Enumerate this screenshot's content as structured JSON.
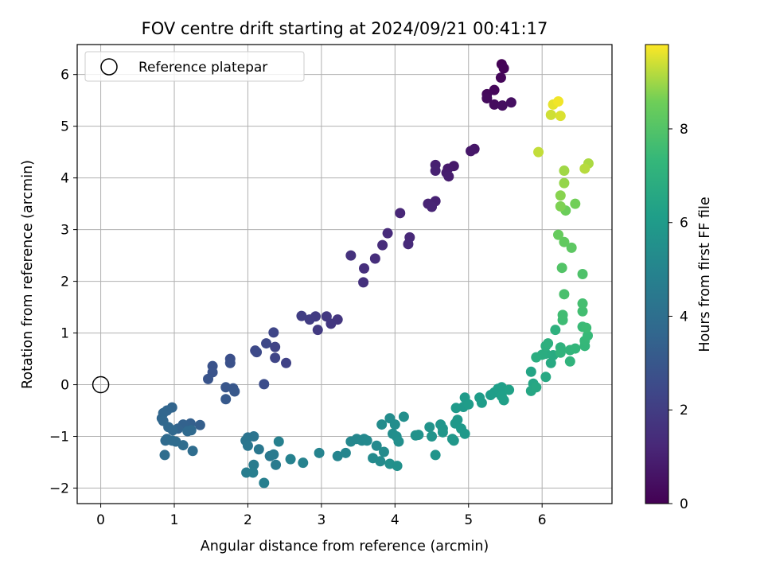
{
  "chart_data": {
    "type": "scatter",
    "title": "FOV centre drift starting at 2024/09/21 00:41:17",
    "xlabel": "Angular distance from reference (arcmin)",
    "ylabel": "Rotation from reference (arcmin)",
    "xlim": [
      -0.32,
      6.95
    ],
    "ylim": [
      -2.3,
      6.58
    ],
    "xticks": [
      0,
      1,
      2,
      3,
      4,
      5,
      6
    ],
    "yticks": [
      -2,
      -1,
      0,
      1,
      2,
      3,
      4,
      5,
      6
    ],
    "grid": true,
    "legend": {
      "position": "top-left",
      "entries": [
        "Reference platepar"
      ]
    },
    "reference_point": {
      "x": 0,
      "y": 0,
      "marker": "open-circle",
      "color": "#000000"
    },
    "colorbar": {
      "label": "Hours from first FF file",
      "colormap": "viridis",
      "range": [
        0,
        9.8
      ],
      "ticks": [
        0,
        2,
        4,
        6,
        8
      ]
    },
    "points": [
      {
        "x": 5.45,
        "y": 6.2,
        "h": 0.05
      },
      {
        "x": 5.48,
        "y": 6.12,
        "h": 0.1
      },
      {
        "x": 5.44,
        "y": 5.94,
        "h": 0.15
      },
      {
        "x": 5.35,
        "y": 5.7,
        "h": 0.2
      },
      {
        "x": 5.25,
        "y": 5.62,
        "h": 0.25
      },
      {
        "x": 5.25,
        "y": 5.54,
        "h": 0.3
      },
      {
        "x": 5.35,
        "y": 5.42,
        "h": 0.35
      },
      {
        "x": 5.46,
        "y": 5.4,
        "h": 0.4
      },
      {
        "x": 5.58,
        "y": 5.46,
        "h": 0.45
      },
      {
        "x": 5.08,
        "y": 4.56,
        "h": 0.65
      },
      {
        "x": 5.03,
        "y": 4.52,
        "h": 0.7
      },
      {
        "x": 4.8,
        "y": 4.23,
        "h": 0.75
      },
      {
        "x": 4.72,
        "y": 4.18,
        "h": 0.8
      },
      {
        "x": 4.7,
        "y": 4.1,
        "h": 0.85
      },
      {
        "x": 4.73,
        "y": 4.03,
        "h": 0.9
      },
      {
        "x": 4.55,
        "y": 4.25,
        "h": 0.95
      },
      {
        "x": 4.55,
        "y": 4.14,
        "h": 1.0
      },
      {
        "x": 4.55,
        "y": 3.55,
        "h": 1.05
      },
      {
        "x": 4.45,
        "y": 3.5,
        "h": 1.1
      },
      {
        "x": 4.5,
        "y": 3.44,
        "h": 1.12
      },
      {
        "x": 4.07,
        "y": 3.32,
        "h": 1.2
      },
      {
        "x": 4.2,
        "y": 2.85,
        "h": 1.25
      },
      {
        "x": 4.18,
        "y": 2.72,
        "h": 1.3
      },
      {
        "x": 3.9,
        "y": 2.93,
        "h": 1.35
      },
      {
        "x": 3.83,
        "y": 2.7,
        "h": 1.4
      },
      {
        "x": 3.73,
        "y": 2.44,
        "h": 1.45
      },
      {
        "x": 3.58,
        "y": 2.25,
        "h": 1.5
      },
      {
        "x": 3.57,
        "y": 1.98,
        "h": 1.55
      },
      {
        "x": 3.4,
        "y": 2.5,
        "h": 1.6
      },
      {
        "x": 3.22,
        "y": 1.26,
        "h": 1.75
      },
      {
        "x": 3.13,
        "y": 1.18,
        "h": 1.8
      },
      {
        "x": 3.07,
        "y": 1.32,
        "h": 1.85
      },
      {
        "x": 2.95,
        "y": 1.06,
        "h": 1.9
      },
      {
        "x": 2.92,
        "y": 1.32,
        "h": 1.95
      },
      {
        "x": 2.84,
        "y": 1.26,
        "h": 2.0
      },
      {
        "x": 2.73,
        "y": 1.33,
        "h": 2.05
      },
      {
        "x": 2.52,
        "y": 0.42,
        "h": 2.2
      },
      {
        "x": 2.37,
        "y": 0.73,
        "h": 2.25
      },
      {
        "x": 2.37,
        "y": 0.52,
        "h": 2.3
      },
      {
        "x": 2.35,
        "y": 1.01,
        "h": 2.35
      },
      {
        "x": 2.25,
        "y": 0.8,
        "h": 2.4
      },
      {
        "x": 2.1,
        "y": 0.66,
        "h": 2.45
      },
      {
        "x": 2.12,
        "y": 0.63,
        "h": 2.5
      },
      {
        "x": 2.22,
        "y": 0.01,
        "h": 2.6
      },
      {
        "x": 1.76,
        "y": 0.5,
        "h": 2.7
      },
      {
        "x": 1.76,
        "y": 0.42,
        "h": 2.75
      },
      {
        "x": 1.52,
        "y": 0.36,
        "h": 2.8
      },
      {
        "x": 1.52,
        "y": 0.24,
        "h": 2.85
      },
      {
        "x": 1.46,
        "y": 0.11,
        "h": 2.9
      },
      {
        "x": 1.7,
        "y": -0.05,
        "h": 2.95
      },
      {
        "x": 1.8,
        "y": -0.07,
        "h": 3.0
      },
      {
        "x": 1.82,
        "y": -0.13,
        "h": 3.05
      },
      {
        "x": 1.7,
        "y": -0.28,
        "h": 3.1
      },
      {
        "x": 1.35,
        "y": -0.78,
        "h": 3.3
      },
      {
        "x": 1.22,
        "y": -0.75,
        "h": 3.35
      },
      {
        "x": 1.18,
        "y": -0.82,
        "h": 3.4
      },
      {
        "x": 1.12,
        "y": -0.77,
        "h": 3.45
      },
      {
        "x": 1.05,
        "y": -0.85,
        "h": 3.5
      },
      {
        "x": 0.97,
        "y": -0.44,
        "h": 3.55
      },
      {
        "x": 0.9,
        "y": -0.5,
        "h": 3.6
      },
      {
        "x": 0.85,
        "y": -0.55,
        "h": 3.62
      },
      {
        "x": 0.83,
        "y": -0.65,
        "h": 3.65
      },
      {
        "x": 0.85,
        "y": -0.7,
        "h": 3.68
      },
      {
        "x": 0.92,
        "y": -0.82,
        "h": 3.7
      },
      {
        "x": 0.98,
        "y": -0.88,
        "h": 3.72
      },
      {
        "x": 1.23,
        "y": -0.88,
        "h": 3.75
      },
      {
        "x": 1.18,
        "y": -0.9,
        "h": 3.78
      },
      {
        "x": 0.9,
        "y": -1.05,
        "h": 3.8
      },
      {
        "x": 0.88,
        "y": -1.08,
        "h": 3.82
      },
      {
        "x": 0.97,
        "y": -1.08,
        "h": 3.85
      },
      {
        "x": 1.02,
        "y": -1.1,
        "h": 3.88
      },
      {
        "x": 1.12,
        "y": -1.17,
        "h": 3.9
      },
      {
        "x": 1.25,
        "y": -1.28,
        "h": 3.92
      },
      {
        "x": 0.87,
        "y": -1.36,
        "h": 3.95
      },
      {
        "x": 2.0,
        "y": -1.02,
        "h": 4.2
      },
      {
        "x": 2.08,
        "y": -1.0,
        "h": 4.25
      },
      {
        "x": 1.97,
        "y": -1.08,
        "h": 4.3
      },
      {
        "x": 2.0,
        "y": -1.18,
        "h": 4.35
      },
      {
        "x": 2.15,
        "y": -1.25,
        "h": 4.4
      },
      {
        "x": 2.3,
        "y": -1.38,
        "h": 4.45
      },
      {
        "x": 2.35,
        "y": -1.35,
        "h": 4.5
      },
      {
        "x": 2.38,
        "y": -1.55,
        "h": 4.55
      },
      {
        "x": 2.08,
        "y": -1.55,
        "h": 4.6
      },
      {
        "x": 1.98,
        "y": -1.7,
        "h": 4.65
      },
      {
        "x": 2.07,
        "y": -1.7,
        "h": 4.7
      },
      {
        "x": 2.22,
        "y": -1.9,
        "h": 4.75
      },
      {
        "x": 2.42,
        "y": -1.1,
        "h": 4.8
      },
      {
        "x": 2.58,
        "y": -1.44,
        "h": 4.85
      },
      {
        "x": 2.75,
        "y": -1.51,
        "h": 4.9
      },
      {
        "x": 2.97,
        "y": -1.32,
        "h": 4.95
      },
      {
        "x": 3.22,
        "y": -1.38,
        "h": 5.0
      },
      {
        "x": 3.33,
        "y": -1.32,
        "h": 5.05
      },
      {
        "x": 3.4,
        "y": -1.1,
        "h": 5.1
      },
      {
        "x": 3.48,
        "y": -1.05,
        "h": 5.12
      },
      {
        "x": 3.55,
        "y": -1.08,
        "h": 5.15
      },
      {
        "x": 3.58,
        "y": -1.05,
        "h": 5.17
      },
      {
        "x": 3.62,
        "y": -1.08,
        "h": 5.2
      },
      {
        "x": 3.75,
        "y": -1.18,
        "h": 5.22
      },
      {
        "x": 3.7,
        "y": -1.42,
        "h": 5.25
      },
      {
        "x": 3.8,
        "y": -1.48,
        "h": 5.28
      },
      {
        "x": 3.85,
        "y": -1.3,
        "h": 5.3
      },
      {
        "x": 3.82,
        "y": -0.77,
        "h": 5.32
      },
      {
        "x": 3.93,
        "y": -0.65,
        "h": 5.35
      },
      {
        "x": 4.0,
        "y": -0.77,
        "h": 5.37
      },
      {
        "x": 3.97,
        "y": -0.95,
        "h": 5.4
      },
      {
        "x": 4.02,
        "y": -1.0,
        "h": 5.42
      },
      {
        "x": 4.05,
        "y": -1.1,
        "h": 5.45
      },
      {
        "x": 4.12,
        "y": -0.62,
        "h": 5.47
      },
      {
        "x": 3.93,
        "y": -1.53,
        "h": 5.5
      },
      {
        "x": 4.03,
        "y": -1.57,
        "h": 5.52
      },
      {
        "x": 4.28,
        "y": -0.98,
        "h": 5.6
      },
      {
        "x": 4.32,
        "y": -0.97,
        "h": 5.62
      },
      {
        "x": 4.47,
        "y": -0.82,
        "h": 5.65
      },
      {
        "x": 4.5,
        "y": -1.0,
        "h": 5.67
      },
      {
        "x": 4.55,
        "y": -1.36,
        "h": 5.7
      },
      {
        "x": 4.62,
        "y": -0.77,
        "h": 5.72
      },
      {
        "x": 4.65,
        "y": -0.85,
        "h": 5.75
      },
      {
        "x": 4.65,
        "y": -0.92,
        "h": 5.77
      },
      {
        "x": 4.78,
        "y": -1.05,
        "h": 5.8
      },
      {
        "x": 4.8,
        "y": -1.08,
        "h": 5.82
      },
      {
        "x": 4.82,
        "y": -0.75,
        "h": 5.85
      },
      {
        "x": 4.85,
        "y": -0.68,
        "h": 5.87
      },
      {
        "x": 4.9,
        "y": -0.85,
        "h": 5.9
      },
      {
        "x": 4.95,
        "y": -0.95,
        "h": 5.92
      },
      {
        "x": 4.83,
        "y": -0.45,
        "h": 5.95
      },
      {
        "x": 4.93,
        "y": -0.43,
        "h": 5.97
      },
      {
        "x": 4.95,
        "y": -0.25,
        "h": 6.0
      },
      {
        "x": 5.0,
        "y": -0.38,
        "h": 6.02
      },
      {
        "x": 5.15,
        "y": -0.25,
        "h": 6.05
      },
      {
        "x": 5.18,
        "y": -0.35,
        "h": 6.07
      },
      {
        "x": 5.3,
        "y": -0.2,
        "h": 6.1
      },
      {
        "x": 5.35,
        "y": -0.15,
        "h": 6.12
      },
      {
        "x": 5.4,
        "y": -0.08,
        "h": 6.15
      },
      {
        "x": 5.45,
        "y": -0.05,
        "h": 6.17
      },
      {
        "x": 5.45,
        "y": -0.22,
        "h": 6.2
      },
      {
        "x": 5.48,
        "y": -0.3,
        "h": 6.22
      },
      {
        "x": 5.55,
        "y": -0.1,
        "h": 6.25
      },
      {
        "x": 5.85,
        "y": 0.25,
        "h": 6.4
      },
      {
        "x": 5.88,
        "y": 0.02,
        "h": 6.45
      },
      {
        "x": 5.85,
        "y": -0.12,
        "h": 6.5
      },
      {
        "x": 5.92,
        "y": -0.05,
        "h": 6.55
      },
      {
        "x": 6.05,
        "y": 0.15,
        "h": 6.6
      },
      {
        "x": 6.12,
        "y": 0.42,
        "h": 6.65
      },
      {
        "x": 6.15,
        "y": 0.57,
        "h": 6.7
      },
      {
        "x": 6.05,
        "y": 0.6,
        "h": 6.75
      },
      {
        "x": 6.0,
        "y": 0.58,
        "h": 6.8
      },
      {
        "x": 5.92,
        "y": 0.53,
        "h": 6.85
      },
      {
        "x": 6.05,
        "y": 0.75,
        "h": 6.9
      },
      {
        "x": 6.08,
        "y": 0.8,
        "h": 6.95
      },
      {
        "x": 6.18,
        "y": 1.06,
        "h": 7.0
      },
      {
        "x": 6.25,
        "y": 0.72,
        "h": 7.05
      },
      {
        "x": 6.25,
        "y": 0.62,
        "h": 7.1
      },
      {
        "x": 6.38,
        "y": 0.45,
        "h": 7.15
      },
      {
        "x": 6.38,
        "y": 0.67,
        "h": 7.2
      },
      {
        "x": 6.45,
        "y": 0.7,
        "h": 7.25
      },
      {
        "x": 6.58,
        "y": 0.75,
        "h": 7.3
      },
      {
        "x": 6.58,
        "y": 0.85,
        "h": 7.35
      },
      {
        "x": 6.62,
        "y": 0.95,
        "h": 7.4
      },
      {
        "x": 6.55,
        "y": 1.12,
        "h": 7.45
      },
      {
        "x": 6.6,
        "y": 1.1,
        "h": 7.5
      },
      {
        "x": 6.28,
        "y": 1.25,
        "h": 7.55
      },
      {
        "x": 6.28,
        "y": 1.35,
        "h": 7.6
      },
      {
        "x": 6.55,
        "y": 1.42,
        "h": 7.65
      },
      {
        "x": 6.55,
        "y": 1.57,
        "h": 7.7
      },
      {
        "x": 6.3,
        "y": 1.75,
        "h": 7.8
      },
      {
        "x": 6.55,
        "y": 2.14,
        "h": 7.9
      },
      {
        "x": 6.27,
        "y": 2.26,
        "h": 8.0
      },
      {
        "x": 6.4,
        "y": 2.65,
        "h": 8.2
      },
      {
        "x": 6.3,
        "y": 2.76,
        "h": 8.3
      },
      {
        "x": 6.22,
        "y": 2.9,
        "h": 8.4
      },
      {
        "x": 6.32,
        "y": 3.37,
        "h": 8.5
      },
      {
        "x": 6.45,
        "y": 3.5,
        "h": 8.6
      },
      {
        "x": 6.25,
        "y": 3.45,
        "h": 8.7
      },
      {
        "x": 6.25,
        "y": 3.66,
        "h": 8.8
      },
      {
        "x": 6.3,
        "y": 3.9,
        "h": 8.9
      },
      {
        "x": 6.3,
        "y": 4.14,
        "h": 9.0
      },
      {
        "x": 6.63,
        "y": 4.28,
        "h": 9.1
      },
      {
        "x": 6.58,
        "y": 4.18,
        "h": 9.2
      },
      {
        "x": 5.95,
        "y": 4.5,
        "h": 9.3
      },
      {
        "x": 6.12,
        "y": 5.22,
        "h": 9.4
      },
      {
        "x": 6.25,
        "y": 5.2,
        "h": 9.5
      },
      {
        "x": 6.15,
        "y": 5.42,
        "h": 9.6
      },
      {
        "x": 6.22,
        "y": 5.48,
        "h": 9.7
      }
    ]
  }
}
